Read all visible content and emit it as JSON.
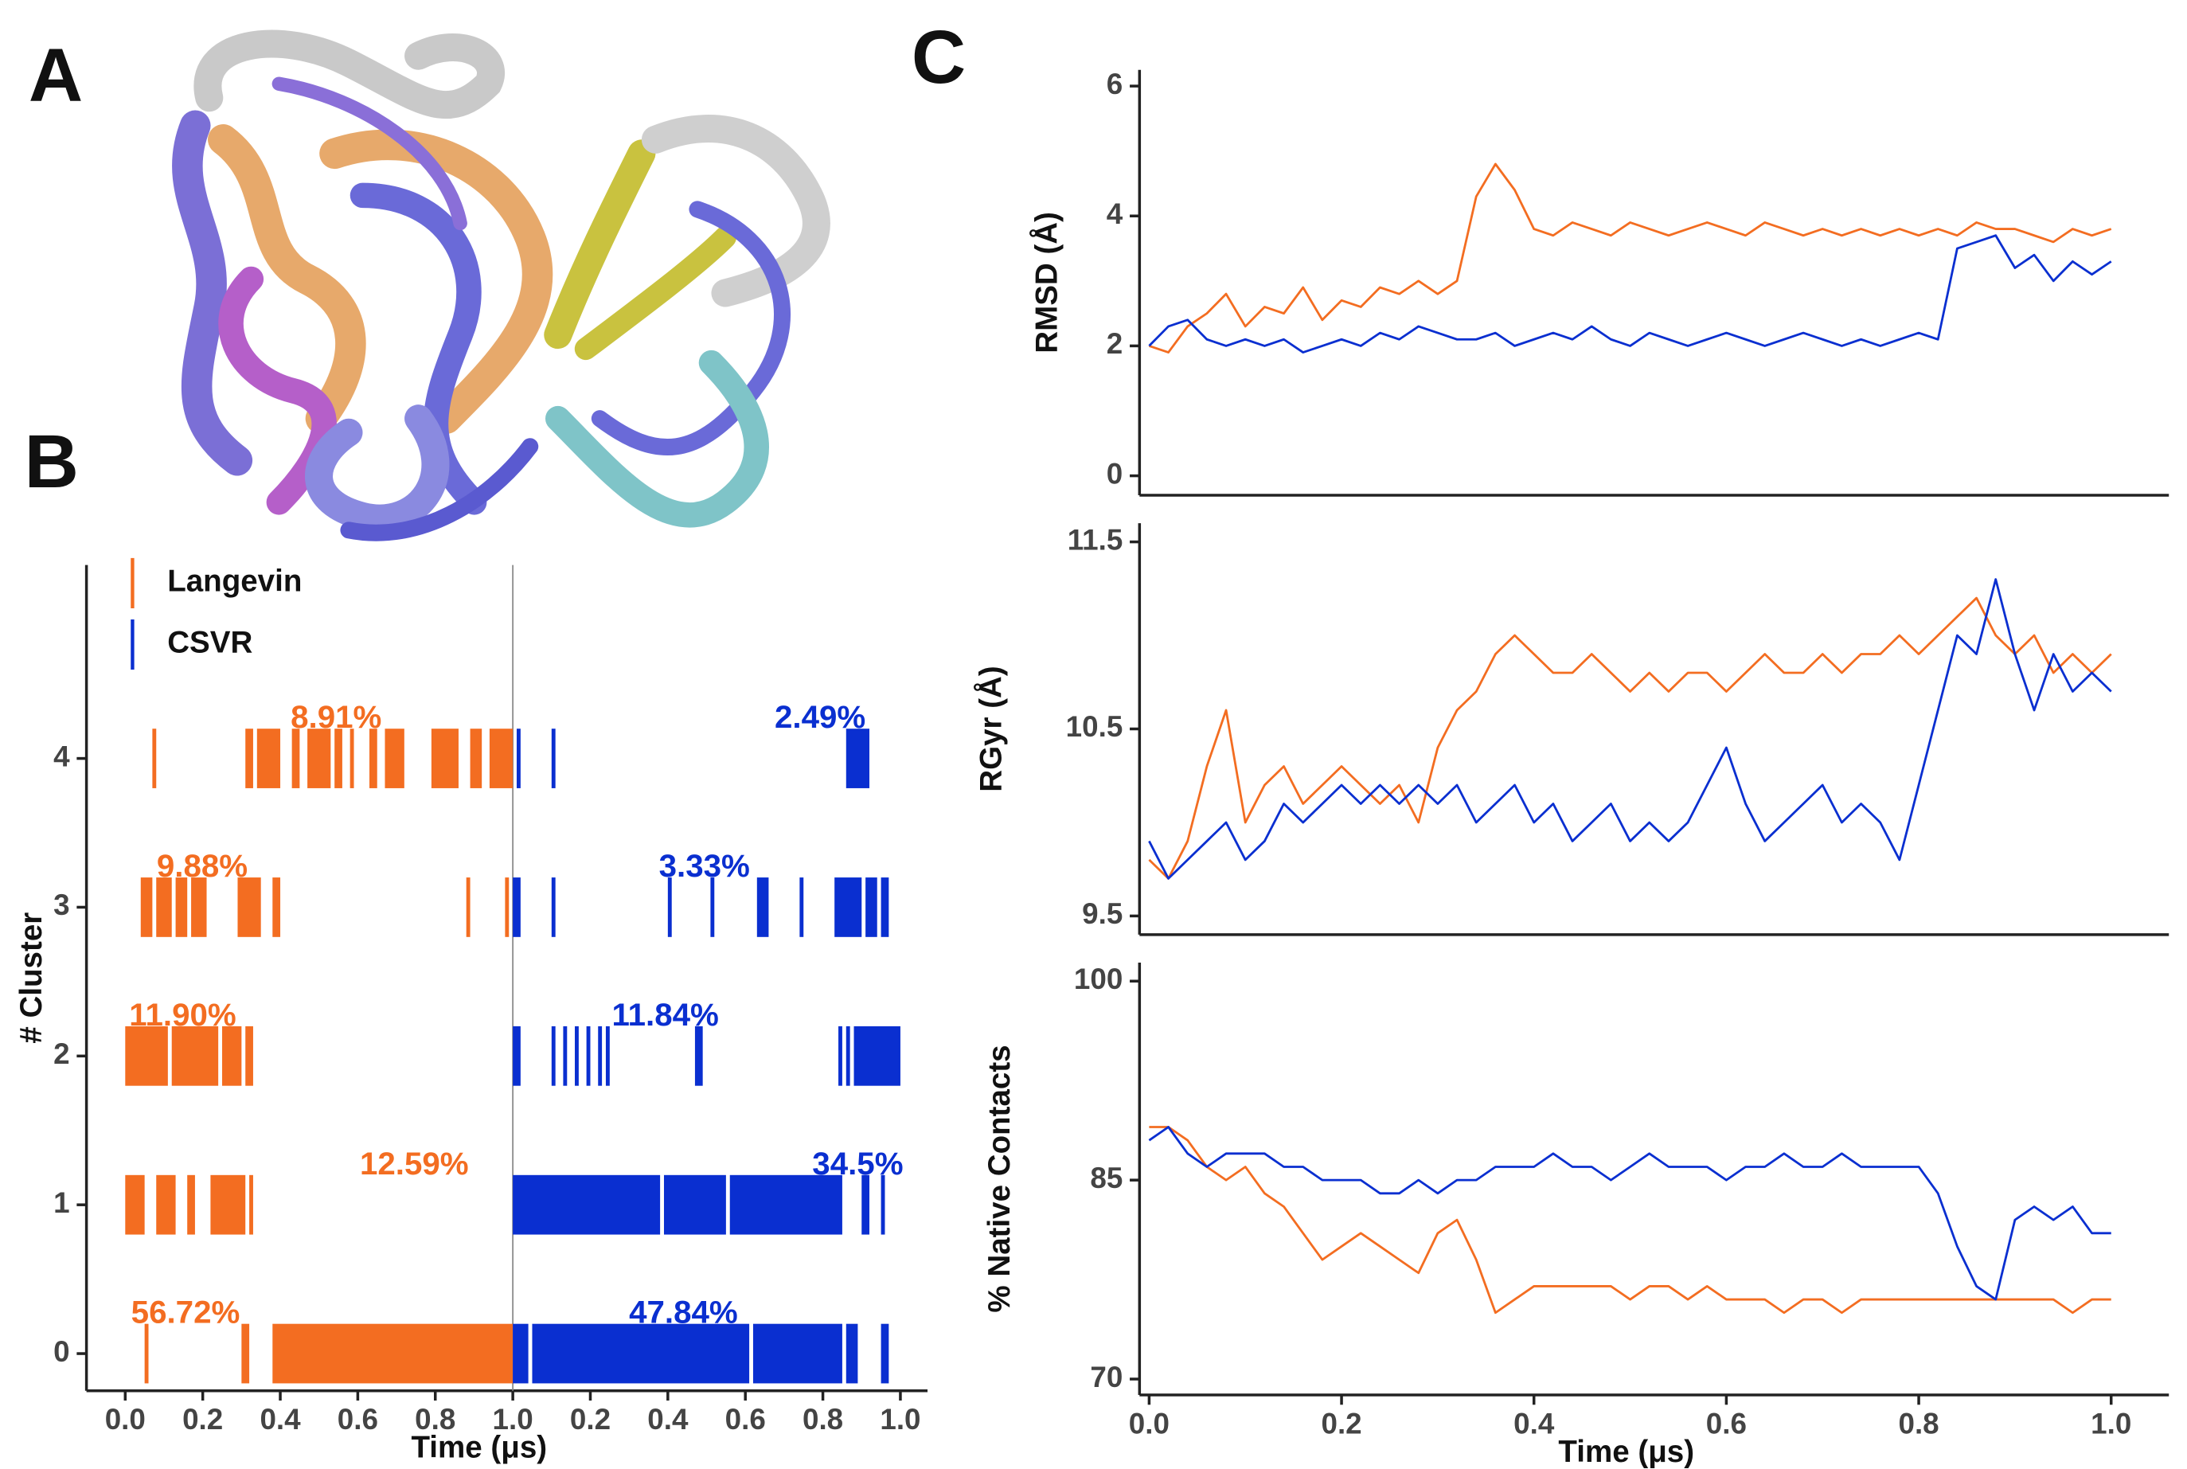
{
  "panel_labels": [
    "A",
    "B",
    "C"
  ],
  "chart_data": [
    {
      "type": "raster",
      "xlabel": "Time (μs)",
      "ylabel": "# Cluster",
      "xlim": [
        -0.1,
        2.07
      ],
      "ylim": [
        -0.25,
        5.3
      ],
      "xticks": [
        {
          "value": 0,
          "label": "0.0"
        },
        0.2,
        0.4,
        0.6,
        0.8,
        {
          "value": 1,
          "label": "1.0"
        },
        {
          "value": 1.2,
          "label": "0.2"
        },
        {
          "value": 1.4,
          "label": "0.4"
        },
        {
          "value": 1.6,
          "label": "0.6"
        },
        {
          "value": 1.8,
          "label": "0.8"
        },
        {
          "value": 2,
          "label": "1.0"
        }
      ],
      "yticks": [
        0,
        1,
        2,
        3,
        4
      ],
      "series": [
        {
          "name": "Langevin",
          "color": "#f36d21",
          "values": [
            56.72,
            12.59,
            11.9,
            9.88,
            8.91
          ],
          "value_labels": [
            "56.72%",
            "12.59%",
            "11.90%",
            "9.88%",
            "8.91%"
          ],
          "segments": [
            {
              "cluster": 4,
              "start": 0.07,
              "end": 0.08
            },
            {
              "cluster": 4,
              "start": 0.31,
              "end": 0.33
            },
            {
              "cluster": 4,
              "start": 0.34,
              "end": 0.4
            },
            {
              "cluster": 4,
              "start": 0.43,
              "end": 0.45
            },
            {
              "cluster": 4,
              "start": 0.47,
              "end": 0.53
            },
            {
              "cluster": 4,
              "start": 0.54,
              "end": 0.56
            },
            {
              "cluster": 4,
              "start": 0.58,
              "end": 0.59
            },
            {
              "cluster": 4,
              "start": 0.63,
              "end": 0.65
            },
            {
              "cluster": 4,
              "start": 0.67,
              "end": 0.72
            },
            {
              "cluster": 4,
              "start": 0.79,
              "end": 0.86
            },
            {
              "cluster": 4,
              "start": 0.89,
              "end": 0.92
            },
            {
              "cluster": 4,
              "start": 0.94,
              "end": 1.0
            },
            {
              "cluster": 3,
              "start": 0.04,
              "end": 0.07
            },
            {
              "cluster": 3,
              "start": 0.08,
              "end": 0.12
            },
            {
              "cluster": 3,
              "start": 0.13,
              "end": 0.16
            },
            {
              "cluster": 3,
              "start": 0.17,
              "end": 0.21
            },
            {
              "cluster": 3,
              "start": 0.29,
              "end": 0.35
            },
            {
              "cluster": 3,
              "start": 0.38,
              "end": 0.4
            },
            {
              "cluster": 3,
              "start": 0.88,
              "end": 0.89
            },
            {
              "cluster": 3,
              "start": 0.98,
              "end": 0.99
            },
            {
              "cluster": 2,
              "start": 0.0,
              "end": 0.11
            },
            {
              "cluster": 2,
              "start": 0.12,
              "end": 0.24
            },
            {
              "cluster": 2,
              "start": 0.25,
              "end": 0.3
            },
            {
              "cluster": 2,
              "start": 0.31,
              "end": 0.33
            },
            {
              "cluster": 1,
              "start": 0.0,
              "end": 0.05
            },
            {
              "cluster": 1,
              "start": 0.08,
              "end": 0.13
            },
            {
              "cluster": 1,
              "start": 0.16,
              "end": 0.18
            },
            {
              "cluster": 1,
              "start": 0.22,
              "end": 0.31
            },
            {
              "cluster": 1,
              "start": 0.32,
              "end": 0.33
            },
            {
              "cluster": 0,
              "start": 0.05,
              "end": 0.06
            },
            {
              "cluster": 0,
              "start": 0.3,
              "end": 0.32
            },
            {
              "cluster": 0,
              "start": 0.38,
              "end": 1.0
            }
          ]
        },
        {
          "name": "CSVR",
          "color": "#0a2fd0",
          "values": [
            47.84,
            34.5,
            11.84,
            3.33,
            2.49
          ],
          "value_labels": [
            "47.84%",
            "34.5%",
            "11.84%",
            "3.33%",
            "2.49%"
          ],
          "segments": [
            {
              "cluster": 4,
              "start": 1.01,
              "end": 1.02
            },
            {
              "cluster": 4,
              "start": 1.1,
              "end": 1.11
            },
            {
              "cluster": 4,
              "start": 1.86,
              "end": 1.92
            },
            {
              "cluster": 3,
              "start": 1.0,
              "end": 1.02
            },
            {
              "cluster": 3,
              "start": 1.1,
              "end": 1.11
            },
            {
              "cluster": 3,
              "start": 1.4,
              "end": 1.41
            },
            {
              "cluster": 3,
              "start": 1.51,
              "end": 1.52
            },
            {
              "cluster": 3,
              "start": 1.63,
              "end": 1.66
            },
            {
              "cluster": 3,
              "start": 1.74,
              "end": 1.75
            },
            {
              "cluster": 3,
              "start": 1.83,
              "end": 1.9
            },
            {
              "cluster": 3,
              "start": 1.91,
              "end": 1.94
            },
            {
              "cluster": 3,
              "start": 1.95,
              "end": 1.97
            },
            {
              "cluster": 2,
              "start": 1.0,
              "end": 1.02
            },
            {
              "cluster": 2,
              "start": 1.1,
              "end": 1.11
            },
            {
              "cluster": 2,
              "start": 1.13,
              "end": 1.14
            },
            {
              "cluster": 2,
              "start": 1.16,
              "end": 1.17
            },
            {
              "cluster": 2,
              "start": 1.19,
              "end": 1.2
            },
            {
              "cluster": 2,
              "start": 1.22,
              "end": 1.23
            },
            {
              "cluster": 2,
              "start": 1.24,
              "end": 1.25
            },
            {
              "cluster": 2,
              "start": 1.47,
              "end": 1.49
            },
            {
              "cluster": 2,
              "start": 1.84,
              "end": 1.85
            },
            {
              "cluster": 2,
              "start": 1.86,
              "end": 1.87
            },
            {
              "cluster": 2,
              "start": 1.88,
              "end": 2.0
            },
            {
              "cluster": 1,
              "start": 1.0,
              "end": 1.38
            },
            {
              "cluster": 1,
              "start": 1.39,
              "end": 1.55
            },
            {
              "cluster": 1,
              "start": 1.56,
              "end": 1.85
            },
            {
              "cluster": 1,
              "start": 1.9,
              "end": 1.92
            },
            {
              "cluster": 1,
              "start": 1.95,
              "end": 1.96
            },
            {
              "cluster": 0,
              "start": 1.0,
              "end": 1.04
            },
            {
              "cluster": 0,
              "start": 1.05,
              "end": 1.61
            },
            {
              "cluster": 0,
              "start": 1.62,
              "end": 1.85
            },
            {
              "cluster": 0,
              "start": 1.86,
              "end": 1.89
            },
            {
              "cluster": 0,
              "start": 1.95,
              "end": 1.97
            }
          ]
        }
      ]
    },
    {
      "type": "line",
      "ylabel": "RMSD (Å)",
      "xlim": [
        -0.01,
        1.06
      ],
      "ylim": [
        -0.3,
        6.25
      ],
      "yticks": [
        0,
        2,
        4,
        6
      ],
      "x": [
        0,
        0.02,
        0.04,
        0.06,
        0.08,
        0.1,
        0.12,
        0.14,
        0.16,
        0.18,
        0.2,
        0.22,
        0.24,
        0.26,
        0.28,
        0.3,
        0.32,
        0.34,
        0.36,
        0.38,
        0.4,
        0.42,
        0.44,
        0.46,
        0.48,
        0.5,
        0.52,
        0.54,
        0.56,
        0.58,
        0.6,
        0.62,
        0.64,
        0.66,
        0.68,
        0.7,
        0.72,
        0.74,
        0.76,
        0.78,
        0.8,
        0.82,
        0.84,
        0.86,
        0.88,
        0.9,
        0.92,
        0.94,
        0.96,
        0.98,
        1
      ],
      "series": [
        {
          "name": "Langevin",
          "color": "#f36d21",
          "values": [
            2.0,
            1.9,
            2.3,
            2.5,
            2.8,
            2.3,
            2.6,
            2.5,
            2.9,
            2.4,
            2.7,
            2.6,
            2.9,
            2.8,
            3.0,
            2.8,
            3.0,
            4.3,
            4.8,
            4.4,
            3.8,
            3.7,
            3.9,
            3.8,
            3.7,
            3.9,
            3.8,
            3.7,
            3.8,
            3.9,
            3.8,
            3.7,
            3.9,
            3.8,
            3.7,
            3.8,
            3.7,
            3.8,
            3.7,
            3.8,
            3.7,
            3.8,
            3.7,
            3.9,
            3.8,
            3.8,
            3.7,
            3.6,
            3.8,
            3.7,
            3.8
          ]
        },
        {
          "name": "CSVR",
          "color": "#0a2fd0",
          "values": [
            2.0,
            2.3,
            2.4,
            2.1,
            2.0,
            2.1,
            2.0,
            2.1,
            1.9,
            2.0,
            2.1,
            2.0,
            2.2,
            2.1,
            2.3,
            2.2,
            2.1,
            2.1,
            2.2,
            2.0,
            2.1,
            2.2,
            2.1,
            2.3,
            2.1,
            2.0,
            2.2,
            2.1,
            2.0,
            2.1,
            2.2,
            2.1,
            2.0,
            2.1,
            2.2,
            2.1,
            2.0,
            2.1,
            2.0,
            2.1,
            2.2,
            2.1,
            3.5,
            3.6,
            3.7,
            3.2,
            3.4,
            3.0,
            3.3,
            3.1,
            3.3
          ]
        }
      ]
    },
    {
      "type": "line",
      "ylabel": "RGyr (Å)",
      "xlim": [
        -0.01,
        1.06
      ],
      "ylim": [
        9.4,
        11.6
      ],
      "yticks": [
        9.5,
        10.5,
        11.5
      ],
      "x": [
        0,
        0.02,
        0.04,
        0.06,
        0.08,
        0.1,
        0.12,
        0.14,
        0.16,
        0.18,
        0.2,
        0.22,
        0.24,
        0.26,
        0.28,
        0.3,
        0.32,
        0.34,
        0.36,
        0.38,
        0.4,
        0.42,
        0.44,
        0.46,
        0.48,
        0.5,
        0.52,
        0.54,
        0.56,
        0.58,
        0.6,
        0.62,
        0.64,
        0.66,
        0.68,
        0.7,
        0.72,
        0.74,
        0.76,
        0.78,
        0.8,
        0.82,
        0.84,
        0.86,
        0.88,
        0.9,
        0.92,
        0.94,
        0.96,
        0.98,
        1
      ],
      "series": [
        {
          "name": "Langevin",
          "color": "#f36d21",
          "values": [
            9.8,
            9.7,
            9.9,
            10.3,
            10.6,
            10.0,
            10.2,
            10.3,
            10.1,
            10.2,
            10.3,
            10.2,
            10.1,
            10.2,
            10.0,
            10.4,
            10.6,
            10.7,
            10.9,
            11.0,
            10.9,
            10.8,
            10.8,
            10.9,
            10.8,
            10.7,
            10.8,
            10.7,
            10.8,
            10.8,
            10.7,
            10.8,
            10.9,
            10.8,
            10.8,
            10.9,
            10.8,
            10.9,
            10.9,
            11.0,
            10.9,
            11.0,
            11.1,
            11.2,
            11.0,
            10.9,
            11.0,
            10.8,
            10.9,
            10.8,
            10.9
          ]
        },
        {
          "name": "CSVR",
          "color": "#0a2fd0",
          "values": [
            9.9,
            9.7,
            9.8,
            9.9,
            10.0,
            9.8,
            9.9,
            10.1,
            10.0,
            10.1,
            10.2,
            10.1,
            10.2,
            10.1,
            10.2,
            10.1,
            10.2,
            10.0,
            10.1,
            10.2,
            10.0,
            10.1,
            9.9,
            10.0,
            10.1,
            9.9,
            10.0,
            9.9,
            10.0,
            10.2,
            10.4,
            10.1,
            9.9,
            10.0,
            10.1,
            10.2,
            10.0,
            10.1,
            10.0,
            9.8,
            10.2,
            10.6,
            11.0,
            10.9,
            11.3,
            10.9,
            10.6,
            10.9,
            10.7,
            10.8,
            10.7
          ]
        }
      ]
    },
    {
      "type": "line",
      "xlabel": "Time (μs)",
      "ylabel": "% Native Contacts",
      "xlim": [
        -0.01,
        1.06
      ],
      "ylim": [
        68.8,
        101.4
      ],
      "yticks": [
        70,
        85,
        100
      ],
      "xticks": [
        {
          "value": 0,
          "label": "0.0"
        },
        0.2,
        0.4,
        0.6,
        0.8,
        {
          "value": 1,
          "label": "1.0"
        }
      ],
      "x": [
        0,
        0.02,
        0.04,
        0.06,
        0.08,
        0.1,
        0.12,
        0.14,
        0.16,
        0.18,
        0.2,
        0.22,
        0.24,
        0.26,
        0.28,
        0.3,
        0.32,
        0.34,
        0.36,
        0.38,
        0.4,
        0.42,
        0.44,
        0.46,
        0.48,
        0.5,
        0.52,
        0.54,
        0.56,
        0.58,
        0.6,
        0.62,
        0.64,
        0.66,
        0.68,
        0.7,
        0.72,
        0.74,
        0.76,
        0.78,
        0.8,
        0.82,
        0.84,
        0.86,
        0.88,
        0.9,
        0.92,
        0.94,
        0.96,
        0.98,
        1
      ],
      "series": [
        {
          "name": "Langevin",
          "color": "#f36d21",
          "values": [
            89,
            89,
            88,
            86,
            85,
            86,
            84,
            83,
            81,
            79,
            80,
            81,
            80,
            79,
            78,
            81,
            82,
            79,
            75,
            76,
            77,
            77,
            77,
            77,
            77,
            76,
            77,
            77,
            76,
            77,
            76,
            76,
            76,
            75,
            76,
            76,
            75,
            76,
            76,
            76,
            76,
            76,
            76,
            76,
            76,
            76,
            76,
            76,
            75,
            76,
            76
          ]
        },
        {
          "name": "CSVR",
          "color": "#0a2fd0",
          "values": [
            88,
            89,
            87,
            86,
            87,
            87,
            87,
            86,
            86,
            85,
            85,
            85,
            84,
            84,
            85,
            84,
            85,
            85,
            86,
            86,
            86,
            87,
            86,
            86,
            85,
            86,
            87,
            86,
            86,
            86,
            85,
            86,
            86,
            87,
            86,
            86,
            87,
            86,
            86,
            86,
            86,
            84,
            80,
            77,
            76,
            82,
            83,
            82,
            83,
            81,
            81
          ]
        }
      ]
    }
  ]
}
